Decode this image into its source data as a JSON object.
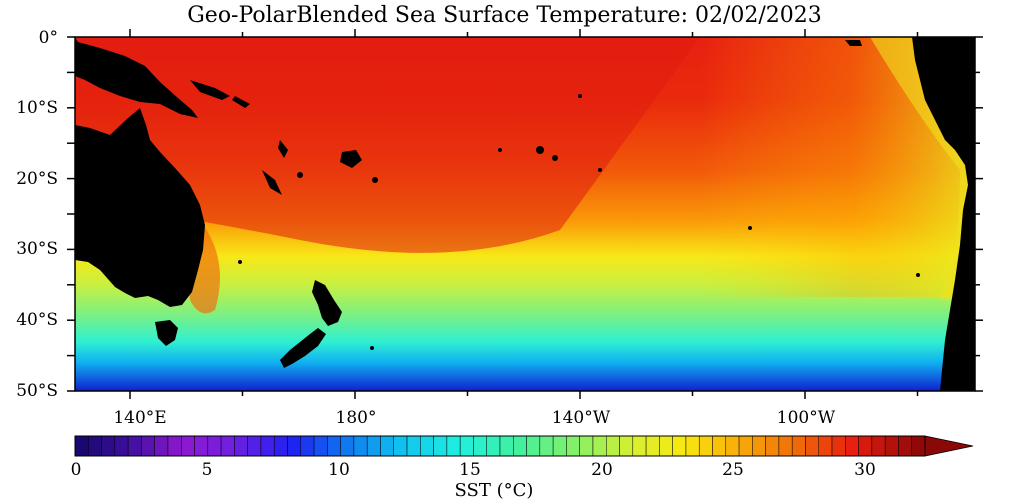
{
  "title": "Geo-PolarBlended Sea Surface Temperature: 02/02/2023",
  "latitude_labels": [
    "0°",
    "10°S",
    "20°S",
    "30°S",
    "40°S",
    "50°S"
  ],
  "longitude_labels": [
    "140°E",
    "180°",
    "140°W",
    "100°W"
  ],
  "colorbar": {
    "title": "SST (°C)",
    "tick_labels": [
      "0",
      "5",
      "10",
      "15",
      "20",
      "25",
      "30"
    ],
    "min": 0,
    "max": 32,
    "step": 0.5,
    "extend": "max"
  },
  "colors": {
    "land": "#000000",
    "warm": "#e8200c",
    "cold": "#1030e0"
  }
}
